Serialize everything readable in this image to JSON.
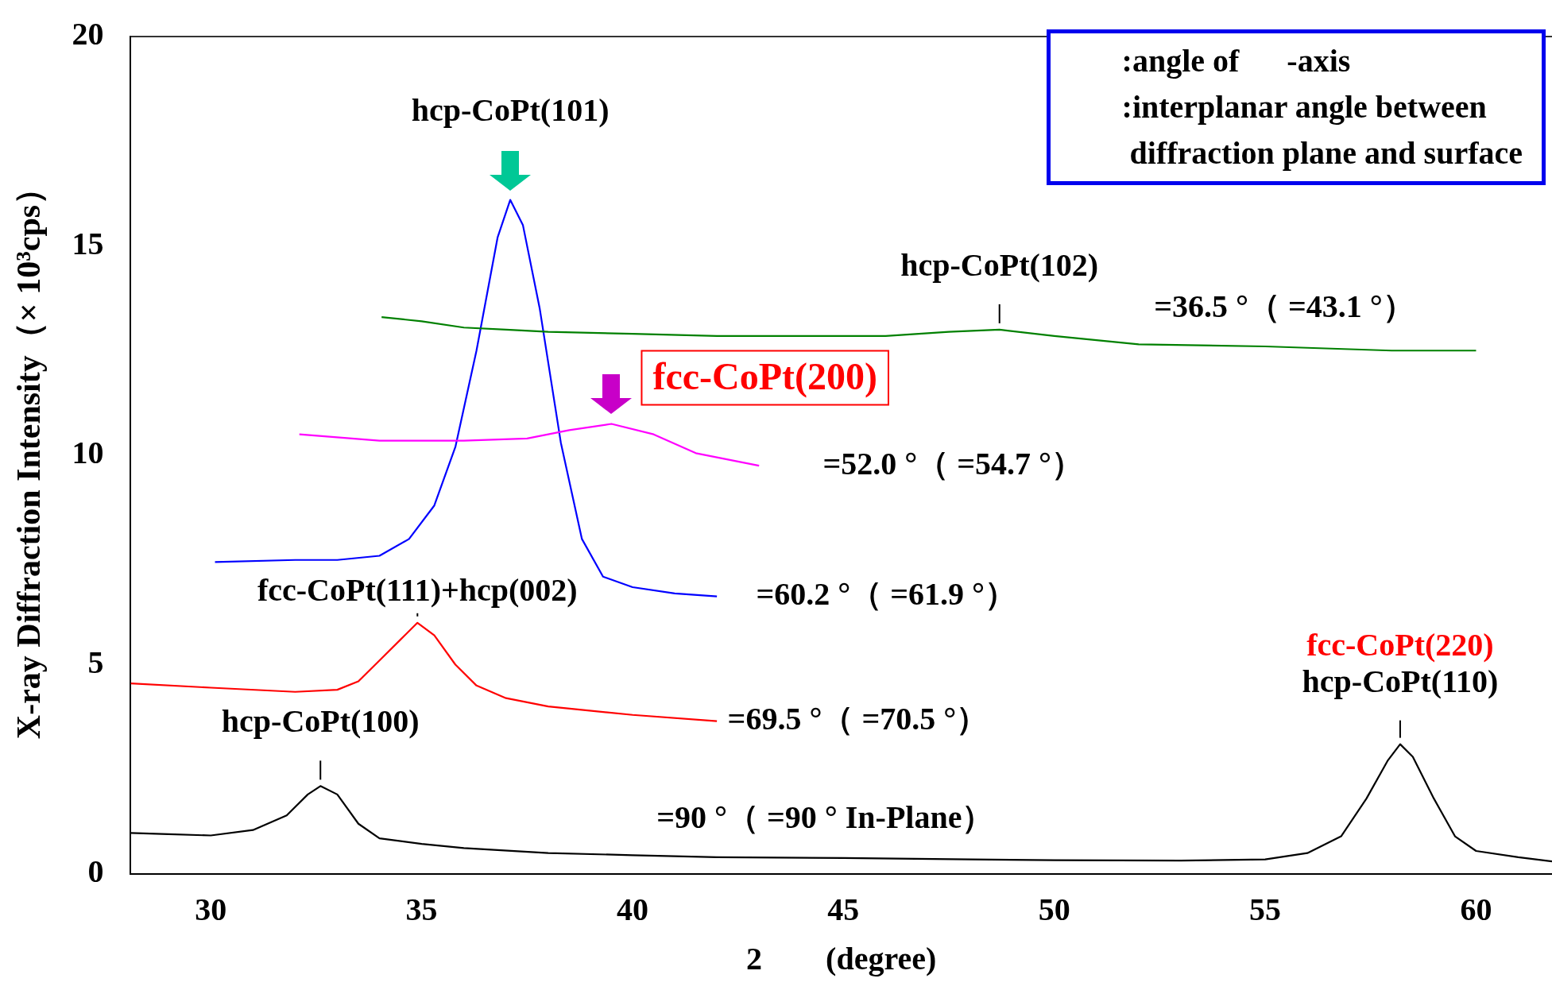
{
  "chart_data": {
    "type": "line",
    "xlabel": "2　　(degree)",
    "ylabel": "X-ray Diffraction Intensity（× 10³cps）",
    "xlim": [
      28.1,
      61.8
    ],
    "xticks": [
      30,
      35,
      40,
      45,
      50,
      55,
      60
    ],
    "ylim": [
      0,
      20
    ],
    "yticks": [
      0,
      5,
      10,
      15,
      20
    ],
    "grid": false,
    "legend": false,
    "marker": "none",
    "line_style": "solid",
    "series": [
      {
        "name": "=36.5 °（ =43.1 °）",
        "color": "#008000",
        "x": [
          34.05,
          35,
          36,
          37,
          38,
          40,
          42,
          44,
          45,
          46,
          47.5,
          48.7,
          50,
          52,
          55,
          58,
          60
        ],
        "values": [
          13.3,
          13.2,
          13.05,
          13.0,
          12.95,
          12.9,
          12.85,
          12.85,
          12.85,
          12.85,
          12.95,
          13.0,
          12.85,
          12.65,
          12.6,
          12.5,
          12.5
        ]
      },
      {
        "name": "=52.0 °（ =54.7 °）",
        "color": "#ff00ff",
        "x": [
          32.1,
          34,
          36,
          37.5,
          38.5,
          39.5,
          40.5,
          41.5,
          43
        ],
        "values": [
          10.5,
          10.35,
          10.35,
          10.4,
          10.6,
          10.75,
          10.5,
          10.05,
          9.75
        ]
      },
      {
        "name": "=60.2 °（ =61.9 °）",
        "color": "#0000ff",
        "x": [
          30.1,
          32,
          33,
          34,
          34.7,
          35.3,
          35.8,
          36.3,
          36.8,
          37.1,
          37.4,
          37.8,
          38.3,
          38.8,
          39.3,
          40,
          41,
          42
        ],
        "values": [
          7.45,
          7.5,
          7.5,
          7.6,
          8.0,
          8.8,
          10.2,
          12.5,
          15.2,
          16.1,
          15.5,
          13.5,
          10.3,
          8.0,
          7.1,
          6.85,
          6.7,
          6.63
        ]
      },
      {
        "name": "=69.5 °（ =70.5 °）",
        "color": "#ff0000",
        "x": [
          28.1,
          30,
          32,
          33,
          33.5,
          34,
          34.5,
          34.9,
          35.3,
          35.8,
          36.3,
          37,
          38,
          40,
          42
        ],
        "values": [
          4.55,
          4.45,
          4.35,
          4.4,
          4.6,
          5.1,
          5.6,
          6.0,
          5.7,
          5.0,
          4.5,
          4.2,
          4.0,
          3.8,
          3.65
        ]
      },
      {
        "name": "=90 °（ =90 ° In-Plane）",
        "color": "#000000",
        "x": [
          28.1,
          29,
          30,
          31,
          31.8,
          32.3,
          32.6,
          33,
          33.5,
          34,
          35,
          36,
          38,
          40,
          42,
          45,
          48,
          50,
          53,
          55,
          56,
          56.8,
          57.4,
          57.9,
          58.2,
          58.5,
          59,
          59.5,
          60,
          61,
          61.8
        ],
        "values": [
          0.98,
          0.95,
          0.92,
          1.05,
          1.4,
          1.9,
          2.1,
          1.9,
          1.2,
          0.85,
          0.72,
          0.62,
          0.5,
          0.45,
          0.4,
          0.38,
          0.35,
          0.33,
          0.32,
          0.35,
          0.5,
          0.9,
          1.8,
          2.7,
          3.1,
          2.8,
          1.8,
          0.9,
          0.55,
          0.4,
          0.3
        ]
      }
    ],
    "annotations": [
      {
        "text": "hcp-CoPt(101)",
        "x": 37.1,
        "y": 16.1
      },
      {
        "text": "fcc-CoPt(200)",
        "x": 39.5,
        "y": 10.75
      },
      {
        "text": "hcp-CoPt(102)",
        "x": 48.7,
        "y": 13.0
      },
      {
        "text": "fcc-CoPt(111)+hcp(002)",
        "x": 34.9,
        "y": 6.0
      },
      {
        "text": "fcc-CoPt(220)",
        "x": 58.2,
        "y": 3.1
      },
      {
        "text": "hcp-CoPt(110)",
        "x": 58.2,
        "y": 3.1
      },
      {
        "text": "hcp-CoPt(100)",
        "x": 32.6,
        "y": 2.1
      },
      ":angle of      -axis",
      ":interplanar angle between",
      " diffraction plane and surface"
    ]
  }
}
